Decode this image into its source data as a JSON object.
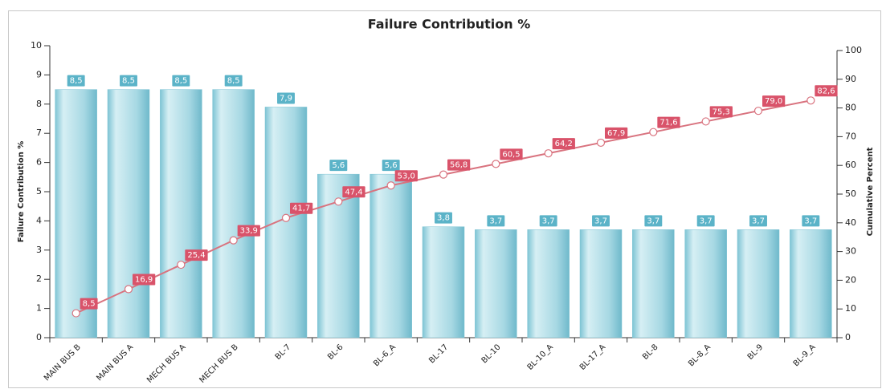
{
  "chart_data": {
    "type": "pareto",
    "title": "Failure Contribution %",
    "ylabel": "Failure Contribution %",
    "y2label": "Cumulative Percent",
    "categories": [
      "MAIN BUS B",
      "MAIN BUS A",
      "MECH BUS A",
      "MECH BUS B",
      "BL-7",
      "BL-6",
      "BL-6_A",
      "BL-17",
      "BL-10",
      "BL-10_A",
      "BL-17_A",
      "BL-8",
      "BL-8_A",
      "BL-9",
      "BL-9_A"
    ],
    "series": [
      {
        "name": "Failure Contribution %",
        "type": "bar",
        "color": "#7ec4d4",
        "label_color": "#5bb3c8",
        "values": [
          8.5,
          8.5,
          8.5,
          8.5,
          7.9,
          5.6,
          5.6,
          3.8,
          3.7,
          3.7,
          3.7,
          3.7,
          3.7,
          3.7,
          3.7
        ],
        "value_labels": [
          "8,5",
          "8,5",
          "8,5",
          "8,5",
          "7,9",
          "5,6",
          "5,6",
          "3,8",
          "3,7",
          "3,7",
          "3,7",
          "3,7",
          "3,7",
          "3,7",
          "3,7"
        ]
      },
      {
        "name": "Cumulative Percent",
        "type": "line",
        "axis": "y2",
        "color": "#d9737f",
        "label_color": "#d9536a",
        "values": [
          8.5,
          16.9,
          25.4,
          33.9,
          41.7,
          47.4,
          53.0,
          56.8,
          60.5,
          64.2,
          67.9,
          71.6,
          75.3,
          79.0,
          82.6
        ],
        "value_labels": [
          "8,5",
          "16,9",
          "25,4",
          "33,9",
          "41,7",
          "47,4",
          "53,0",
          "56,8",
          "60,5",
          "64,2",
          "67,9",
          "71,6",
          "75,3",
          "79,0",
          "82,6"
        ]
      }
    ],
    "ylim": [
      0,
      10
    ],
    "yticks": [
      0,
      1,
      2,
      3,
      4,
      5,
      6,
      7,
      8,
      9,
      10
    ],
    "y2lim": [
      0,
      100
    ],
    "y2ticks": [
      0,
      10,
      20,
      30,
      40,
      50,
      60,
      70,
      80,
      90,
      100
    ]
  }
}
